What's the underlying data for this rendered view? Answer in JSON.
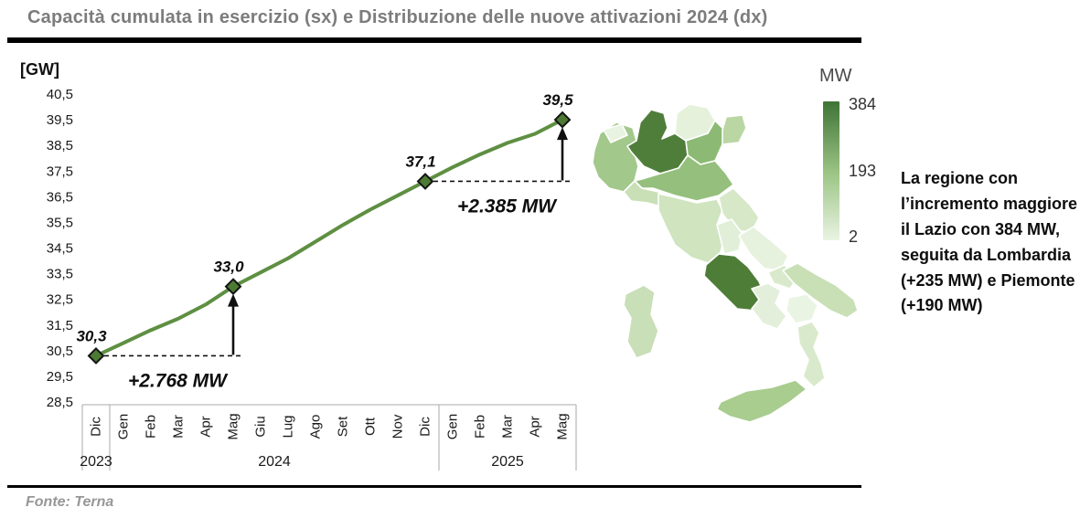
{
  "header": {
    "title": "Capacità cumulata in esercizio (sx) e Distribuzione delle nuove attivazioni 2024 (dx)"
  },
  "footer": {
    "source": "Fonte: Terna"
  },
  "note": {
    "text": "La regione con l’incremento maggiore è il Lazio con 384 MW, seguita da Lombardia (+235 MW) e Piemonte (+190 MW)"
  },
  "chart_data": {
    "type": "line",
    "unit_label": "[GW]",
    "x_months": [
      "Dic",
      "Gen",
      "Feb",
      "Mar",
      "Apr",
      "Mag",
      "Giu",
      "Lug",
      "Ago",
      "Set",
      "Ott",
      "Nov",
      "Dic",
      "Gen",
      "Feb",
      "Mar",
      "Apr",
      "Mag"
    ],
    "year_groups": [
      {
        "label": "2023",
        "span": 1
      },
      {
        "label": "2024",
        "span": 12
      },
      {
        "label": "2025",
        "span": 5
      }
    ],
    "values": [
      30.3,
      30.8,
      31.3,
      31.75,
      32.3,
      33.0,
      33.55,
      34.1,
      34.75,
      35.4,
      36.0,
      36.55,
      37.1,
      37.65,
      38.15,
      38.6,
      38.95,
      39.5
    ],
    "labeled_points": [
      {
        "index": 0,
        "label": "30,3",
        "value": 30.3,
        "month": "Dic 2023"
      },
      {
        "index": 5,
        "label": "33,0",
        "value": 33.0,
        "month": "Mag 2024"
      },
      {
        "index": 12,
        "label": "37,1",
        "value": 37.1,
        "month": "Dic 2024"
      },
      {
        "index": 17,
        "label": "39,5",
        "value": 39.5,
        "month": "Mag 2025"
      }
    ],
    "annotations": [
      {
        "text": "+2.768 MW",
        "from_index": 0,
        "to_index": 5
      },
      {
        "text": "+2.385 MW",
        "from_index": 12,
        "to_index": 17
      }
    ],
    "ylim": [
      28.5,
      40.5
    ],
    "ytick_labels": [
      "40,5",
      "39,5",
      "38,5",
      "37,5",
      "36,5",
      "35,5",
      "34,5",
      "33,5",
      "32,5",
      "31,5",
      "30,5",
      "29,5",
      "28,5"
    ],
    "grid": false,
    "legend_position": "none",
    "line_color": "#5e8f42",
    "marker_fill": "#4c7a33",
    "marker_stroke": "#141414",
    "annotation_color": "#111111"
  },
  "map": {
    "legend": {
      "title": "MW",
      "ticks": [
        "384",
        "193",
        "2"
      ],
      "gradient_top": "#3f7336",
      "gradient_mid": "#9cc585",
      "gradient_bottom": "#eaf3e3"
    },
    "highlights": [
      {
        "region": "Lazio",
        "value_mw": 384
      },
      {
        "region": "Lombardia",
        "value_mw": 235
      },
      {
        "region": "Piemonte",
        "value_mw": 190
      }
    ],
    "regions": [
      {
        "id": "valle-daosta",
        "name": "Valle d'Aosta",
        "color": "#e9f3e1"
      },
      {
        "id": "piemonte",
        "name": "Piemonte",
        "color": "#a3c88c"
      },
      {
        "id": "liguria",
        "name": "Liguria",
        "color": "#c9e0b7"
      },
      {
        "id": "lombardia",
        "name": "Lombardia",
        "color": "#4f7e3a"
      },
      {
        "id": "trentino-alto-adige",
        "name": "Trentino-Alto Adige",
        "color": "#e6f1dc"
      },
      {
        "id": "veneto",
        "name": "Veneto",
        "color": "#8cba74"
      },
      {
        "id": "friuli-venezia-giulia",
        "name": "Friuli-Venezia Giulia",
        "color": "#b9d6a3"
      },
      {
        "id": "emilia-romagna",
        "name": "Emilia-Romagna",
        "color": "#94bf7c"
      },
      {
        "id": "toscana",
        "name": "Toscana",
        "color": "#cfe4bf"
      },
      {
        "id": "umbria",
        "name": "Umbria",
        "color": "#e2efd8"
      },
      {
        "id": "marche",
        "name": "Marche",
        "color": "#d6e8c8"
      },
      {
        "id": "lazio",
        "name": "Lazio",
        "color": "#4e7d38"
      },
      {
        "id": "abruzzo",
        "name": "Abruzzo",
        "color": "#e7f2de"
      },
      {
        "id": "molise",
        "name": "Molise",
        "color": "#d9eacc"
      },
      {
        "id": "campania",
        "name": "Campania",
        "color": "#e3efda"
      },
      {
        "id": "puglia",
        "name": "Puglia",
        "color": "#c9e0b7"
      },
      {
        "id": "basilicata",
        "name": "Basilicata",
        "color": "#eaf4e3"
      },
      {
        "id": "calabria",
        "name": "Calabria",
        "color": "#d9eacc"
      },
      {
        "id": "sicilia",
        "name": "Sicilia",
        "color": "#a9cc8f"
      },
      {
        "id": "sardegna",
        "name": "Sardegna",
        "color": "#c8dfb7"
      }
    ]
  }
}
